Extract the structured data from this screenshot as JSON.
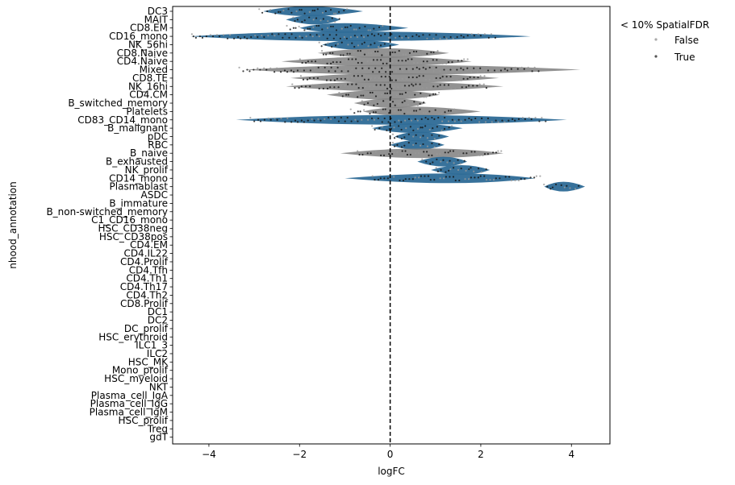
{
  "chart_data": {
    "type": "violin",
    "xlabel": "logFC",
    "ylabel": "nhood_annotation",
    "xlim": [
      -4.8,
      4.85
    ],
    "xticks": [
      -4,
      -2,
      0,
      2,
      4
    ],
    "xtick_labels": [
      "−4",
      "−2",
      "0",
      "2",
      "4"
    ],
    "reference_line_x": 0,
    "legend": {
      "title": "< 10% SpatialFDR",
      "placement": "upper-right-outside",
      "entries": [
        {
          "label": "False",
          "color": "#aaaaaa"
        },
        {
          "label": "True",
          "color": "#555555"
        }
      ]
    },
    "colors": {
      "violin": "#2d6a96",
      "violin_alt": "#7f7f7f",
      "zero_line": "#000000",
      "point_true": "#111111",
      "point_false": "#999999"
    },
    "categories": [
      "DC3",
      "MAIT",
      "CD8.EM",
      "CD16_mono",
      "NK_56hi",
      "CD8.Naive",
      "CD4.Naive",
      "Mixed",
      "CD8.TE",
      "NK_16hi",
      "CD4.CM",
      "B_switched_memory",
      "Platelets",
      "CD83_CD14_mono",
      "B_malignant",
      "pDC",
      "RBC",
      "B_naive",
      "B_exhausted",
      "NK_prolif",
      "CD14_mono",
      "Plasmablast",
      "ASDC",
      "B_immature",
      "B_non-switched_memory",
      "C1_CD16_mono",
      "HSC_CD38neg",
      "HSC_CD38pos",
      "CD4.EM",
      "CD4.IL22",
      "CD4.Prolif",
      "CD4.Tfh",
      "CD4.Th1",
      "CD4.Th17",
      "CD4.Th2",
      "CD8.Prolif",
      "DC1",
      "DC2",
      "DC_prolif",
      "HSC_erythroid",
      "ILC1_3",
      "ILC2",
      "HSC_MK",
      "Mono_prolif",
      "HSC_myeloid",
      "NKT",
      "Plasma_cell_IgA",
      "Plasma_cell_IgG",
      "Plasma_cell_IgM",
      "HSC_prolif",
      "Treg",
      "gdT"
    ],
    "violins": [
      {
        "label": "DC3",
        "min": -2.8,
        "max": -0.6,
        "center": -1.9,
        "alt": false
      },
      {
        "label": "MAIT",
        "min": -2.3,
        "max": -1.1,
        "center": -1.6,
        "alt": false
      },
      {
        "label": "CD8.EM",
        "min": -2.0,
        "max": 0.4,
        "center": -1.2,
        "alt": false
      },
      {
        "label": "CD16_mono",
        "min": -4.4,
        "max": 3.1,
        "center": -1.0,
        "alt": false
      },
      {
        "label": "NK_56hi",
        "min": -1.5,
        "max": 0.2,
        "center": -0.8,
        "alt": false
      },
      {
        "label": "CD8.Naive",
        "min": -1.6,
        "max": 1.3,
        "center": -0.2,
        "alt": true
      },
      {
        "label": "CD4.Naive",
        "min": -2.4,
        "max": 1.8,
        "center": -0.1,
        "alt": true
      },
      {
        "label": "Mixed",
        "min": -3.2,
        "max": 4.2,
        "center": 0.0,
        "alt": true
      },
      {
        "label": "CD8.TE",
        "min": -2.2,
        "max": 2.4,
        "center": 0.1,
        "alt": true
      },
      {
        "label": "NK_16hi",
        "min": -2.3,
        "max": 2.5,
        "center": 0.0,
        "alt": true
      },
      {
        "label": "CD4.CM",
        "min": -1.4,
        "max": 1.1,
        "center": 0.0,
        "alt": true
      },
      {
        "label": "B_switched_memory",
        "min": -0.8,
        "max": 0.8,
        "center": 0.1,
        "alt": true
      },
      {
        "label": "Platelets",
        "min": -0.6,
        "max": 2.0,
        "center": 0.3,
        "alt": true
      },
      {
        "label": "CD83_CD14_mono",
        "min": -3.4,
        "max": 3.9,
        "center": 0.2,
        "alt": false
      },
      {
        "label": "B_malignant",
        "min": -0.4,
        "max": 1.6,
        "center": 0.5,
        "alt": false
      },
      {
        "label": "pDC",
        "min": 0.1,
        "max": 1.3,
        "center": 0.6,
        "alt": false
      },
      {
        "label": "RBC",
        "min": 0.0,
        "max": 1.2,
        "center": 0.6,
        "alt": false
      },
      {
        "label": "B_naive",
        "min": -1.1,
        "max": 2.5,
        "center": 0.9,
        "alt": true
      },
      {
        "label": "B_exhausted",
        "min": 0.6,
        "max": 1.7,
        "center": 1.2,
        "alt": false
      },
      {
        "label": "NK_prolif",
        "min": 0.9,
        "max": 2.2,
        "center": 1.6,
        "alt": false
      },
      {
        "label": "CD14_mono",
        "min": -1.0,
        "max": 3.2,
        "center": 1.5,
        "alt": false
      },
      {
        "label": "Plasmablast",
        "min": 3.4,
        "max": 4.3,
        "center": 3.8,
        "alt": false
      }
    ]
  }
}
